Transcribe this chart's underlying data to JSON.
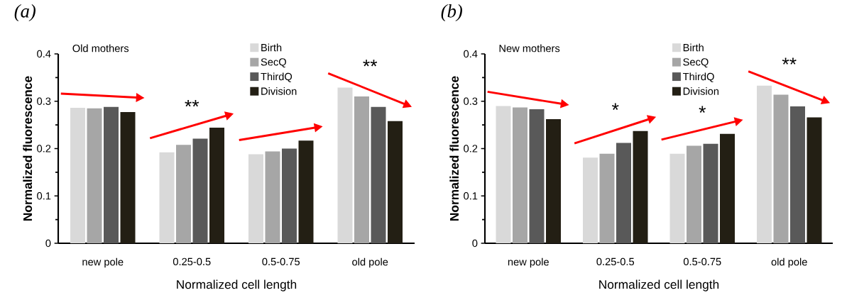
{
  "chart_data": [
    {
      "type": "bar",
      "title": "(a)",
      "subtitle": "Old mothers",
      "xlabel": "Normalized cell length",
      "ylabel": "Normalized fluorescence",
      "categories": [
        "new pole",
        "0.25-0.5",
        "0.5-0.75",
        "old pole"
      ],
      "series": [
        {
          "name": "Birth",
          "color": "#d9d9d9",
          "values": [
            0.286,
            0.192,
            0.188,
            0.329
          ]
        },
        {
          "name": "SecQ",
          "color": "#a6a6a6",
          "values": [
            0.285,
            0.208,
            0.194,
            0.31
          ]
        },
        {
          "name": "ThirdQ",
          "color": "#595959",
          "values": [
            0.288,
            0.221,
            0.2,
            0.288
          ]
        },
        {
          "name": "Division",
          "color": "#231f14",
          "values": [
            0.277,
            0.244,
            0.217,
            0.258
          ]
        }
      ],
      "ylim": [
        0,
        0.4
      ],
      "yticks": [
        0,
        0.1,
        0.2,
        0.3,
        0.4
      ],
      "grid": false,
      "legend": "top",
      "annotations": [
        "**",
        "**"
      ]
    },
    {
      "type": "bar",
      "title": "(b)",
      "subtitle": "New mothers",
      "xlabel": "Normalized cell length",
      "ylabel": "Normalized fluorescence",
      "categories": [
        "new pole",
        "0.25-0.5",
        "0.5-0.75",
        "old pole"
      ],
      "series": [
        {
          "name": "Birth",
          "color": "#d9d9d9",
          "values": [
            0.29,
            0.181,
            0.189,
            0.333
          ]
        },
        {
          "name": "SecQ",
          "color": "#a6a6a6",
          "values": [
            0.287,
            0.189,
            0.206,
            0.314
          ]
        },
        {
          "name": "ThirdQ",
          "color": "#595959",
          "values": [
            0.283,
            0.212,
            0.21,
            0.289
          ]
        },
        {
          "name": "Division",
          "color": "#231f14",
          "values": [
            0.262,
            0.237,
            0.231,
            0.266
          ]
        }
      ],
      "ylim": [
        0,
        0.4
      ],
      "yticks": [
        0,
        0.1,
        0.2,
        0.3,
        0.4
      ],
      "grid": false,
      "legend": "top",
      "annotations": [
        "*",
        "*",
        "**"
      ]
    }
  ]
}
